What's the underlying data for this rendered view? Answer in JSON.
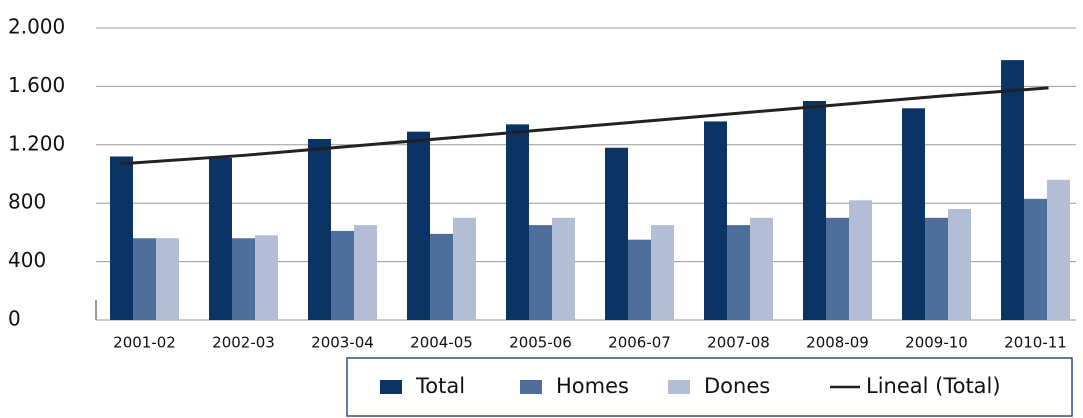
{
  "chart_data": {
    "type": "bar",
    "categories": [
      "2001-02",
      "2002-03",
      "2003-04",
      "2004-05",
      "2005-06",
      "2006-07",
      "2007-08",
      "2008-09",
      "2009-10",
      "2010-11"
    ],
    "series": [
      {
        "name": "Total",
        "color": "#0b3364",
        "values": [
          1120,
          1110,
          1240,
          1290,
          1340,
          1180,
          1360,
          1500,
          1450,
          1780
        ]
      },
      {
        "name": "Homes",
        "color": "#4f6e9c",
        "values": [
          560,
          560,
          610,
          590,
          650,
          550,
          650,
          700,
          700,
          830
        ]
      },
      {
        "name": "Dones",
        "color": "#b3bdd6",
        "values": [
          560,
          580,
          650,
          700,
          700,
          650,
          700,
          820,
          760,
          960
        ]
      },
      {
        "name": "Lineal (Total)",
        "color": "#222222",
        "type": "line",
        "values": [
          1070,
          1128,
          1186,
          1243,
          1301,
          1359,
          1417,
          1474,
          1532,
          1590
        ]
      }
    ],
    "ylim": [
      0,
      2000
    ],
    "yticks": [
      0,
      400,
      800,
      {
        "value": 1200,
        "label": "1.200"
      },
      {
        "value": 1600,
        "label": "1.600"
      },
      {
        "value": 2000,
        "label": "2.000"
      }
    ],
    "grid": true,
    "legend": "bottom"
  }
}
